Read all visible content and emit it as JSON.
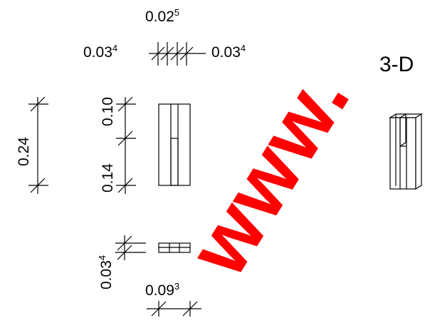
{
  "dimensions": {
    "top_gap": {
      "main": "0.02",
      "sup": "5"
    },
    "top_left_width": {
      "main": "0.03",
      "sup": "4"
    },
    "top_right_width": {
      "main": "0.03",
      "sup": "4"
    },
    "overall_height": {
      "main": "0.24",
      "sup": ""
    },
    "upper_segment": {
      "main": "0.10",
      "sup": ""
    },
    "lower_segment": {
      "main": "0.14",
      "sup": ""
    },
    "plan_depth": {
      "main": "0.03",
      "sup": "4"
    },
    "plan_width": {
      "main": "0.09",
      "sup": "3"
    }
  },
  "threed_label": "3-D",
  "watermark": "www.",
  "colors": {
    "lines": "#000000",
    "watermark": "#ff0000",
    "background": "#ffffff"
  }
}
